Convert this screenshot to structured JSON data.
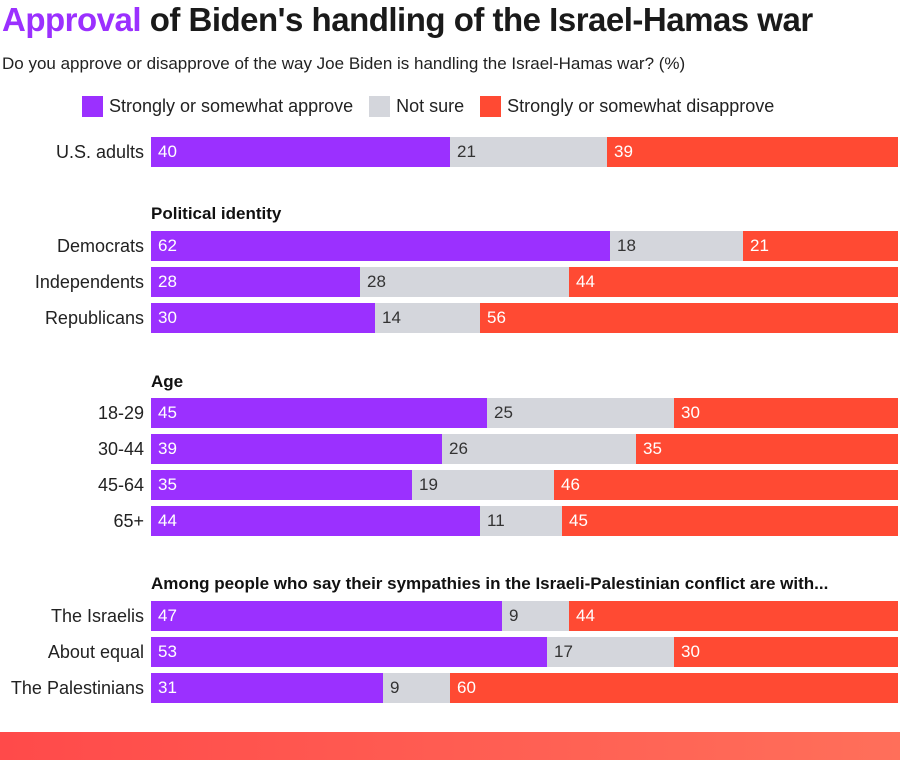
{
  "title": {
    "accent": "Approval",
    "rest": " of Biden's handling of the Israel-Hamas war"
  },
  "subtitle": "Do you approve or disapprove of the way Joe Biden is handling the Israel-Hamas war? (%)",
  "colors": {
    "approve": "#9b30ff",
    "not_sure": "#d4d6dc",
    "disapprove": "#ff4a33",
    "title_accent": "#9b30ff"
  },
  "legend": [
    {
      "label": "Strongly or somewhat approve"
    },
    {
      "label": "Not sure"
    },
    {
      "label": "Strongly or somewhat disapprove"
    }
  ],
  "chart_data": {
    "type": "bar",
    "orientation": "horizontal",
    "stacked": true,
    "units": "%",
    "series_names": [
      "Strongly or somewhat approve",
      "Not sure",
      "Strongly or somewhat disapprove"
    ],
    "groups": [
      {
        "label": "",
        "rows": [
          {
            "label": "U.S. adults",
            "values": [
              40,
              21,
              39
            ]
          }
        ]
      },
      {
        "label": "Political identity",
        "rows": [
          {
            "label": "Democrats",
            "values": [
              62,
              18,
              21
            ]
          },
          {
            "label": "Independents",
            "values": [
              28,
              28,
              44
            ]
          },
          {
            "label": "Republicans",
            "values": [
              30,
              14,
              56
            ]
          }
        ]
      },
      {
        "label": "Age",
        "rows": [
          {
            "label": "18-29",
            "values": [
              45,
              25,
              30
            ]
          },
          {
            "label": "30-44",
            "values": [
              39,
              26,
              35
            ]
          },
          {
            "label": "45-64",
            "values": [
              35,
              19,
              46
            ]
          },
          {
            "label": "65+",
            "values": [
              44,
              11,
              45
            ]
          }
        ]
      },
      {
        "label": "Among people who say their sympathies in the Israeli-Palestinian conflict are with...",
        "rows": [
          {
            "label": "The Israelis",
            "values": [
              47,
              9,
              44
            ]
          },
          {
            "label": "About equal",
            "values": [
              53,
              17,
              30
            ]
          },
          {
            "label": "The Palestinians",
            "values": [
              31,
              9,
              60
            ]
          }
        ]
      }
    ]
  }
}
